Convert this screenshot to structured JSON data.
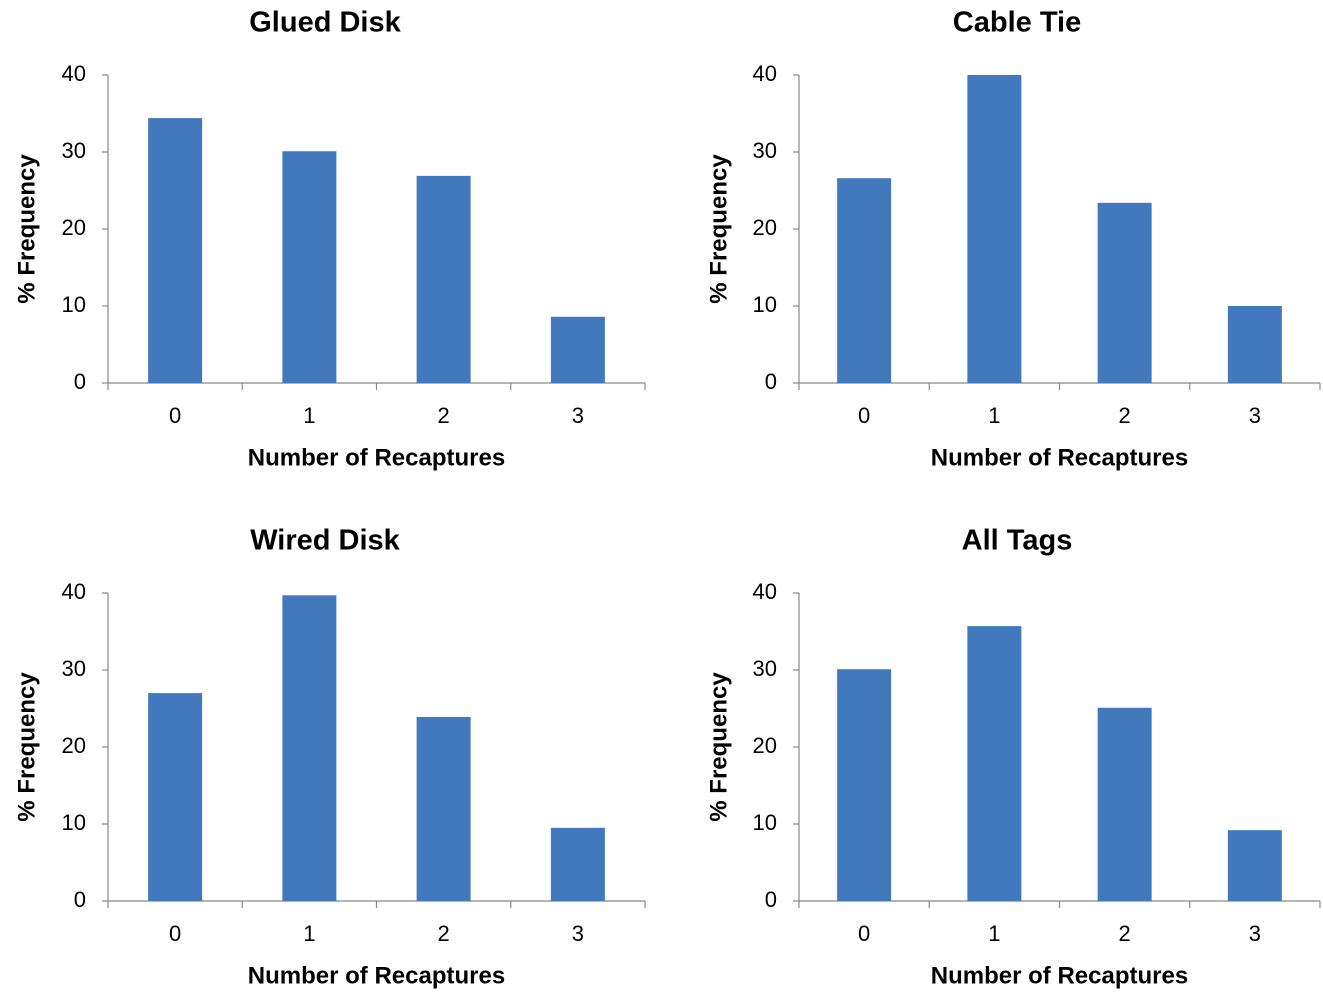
{
  "chart_data": [
    {
      "type": "bar",
      "title": "Glued Disk",
      "x_label": "Number of Recaptures",
      "y_label": "% Frequency",
      "categories": [
        "0",
        "1",
        "2",
        "3"
      ],
      "values": [
        34.4,
        30.1,
        26.9,
        8.6
      ],
      "color": "#4279bd",
      "ylim": [
        0,
        40
      ],
      "yticks": [
        0,
        10,
        20,
        30,
        40
      ]
    },
    {
      "type": "bar",
      "title": "Cable Tie",
      "x_label": "Number of Recaptures",
      "y_label": "% Frequency",
      "categories": [
        "0",
        "1",
        "2",
        "3"
      ],
      "values": [
        26.6,
        40,
        23.4,
        10
      ],
      "color": "#4279bd",
      "ylim": [
        0,
        40
      ],
      "yticks": [
        0,
        10,
        20,
        30,
        40
      ]
    },
    {
      "type": "bar",
      "title": "Wired Disk",
      "x_label": "Number of Recaptures",
      "y_label": "% Frequency",
      "categories": [
        "0",
        "1",
        "2",
        "3"
      ],
      "values": [
        27.0,
        39.7,
        23.9,
        9.5
      ],
      "color": "#4279bd",
      "ylim": [
        0,
        40
      ],
      "yticks": [
        0,
        10,
        20,
        30,
        40
      ]
    },
    {
      "type": "bar",
      "title": "All Tags",
      "x_label": "Number of Recaptures",
      "y_label": "% Frequency",
      "categories": [
        "0",
        "1",
        "2",
        "3"
      ],
      "values": [
        30.1,
        35.7,
        25.1,
        9.2
      ],
      "color": "#4279bd",
      "ylim": [
        0,
        40
      ],
      "yticks": [
        0,
        10,
        20,
        30,
        40
      ]
    }
  ]
}
